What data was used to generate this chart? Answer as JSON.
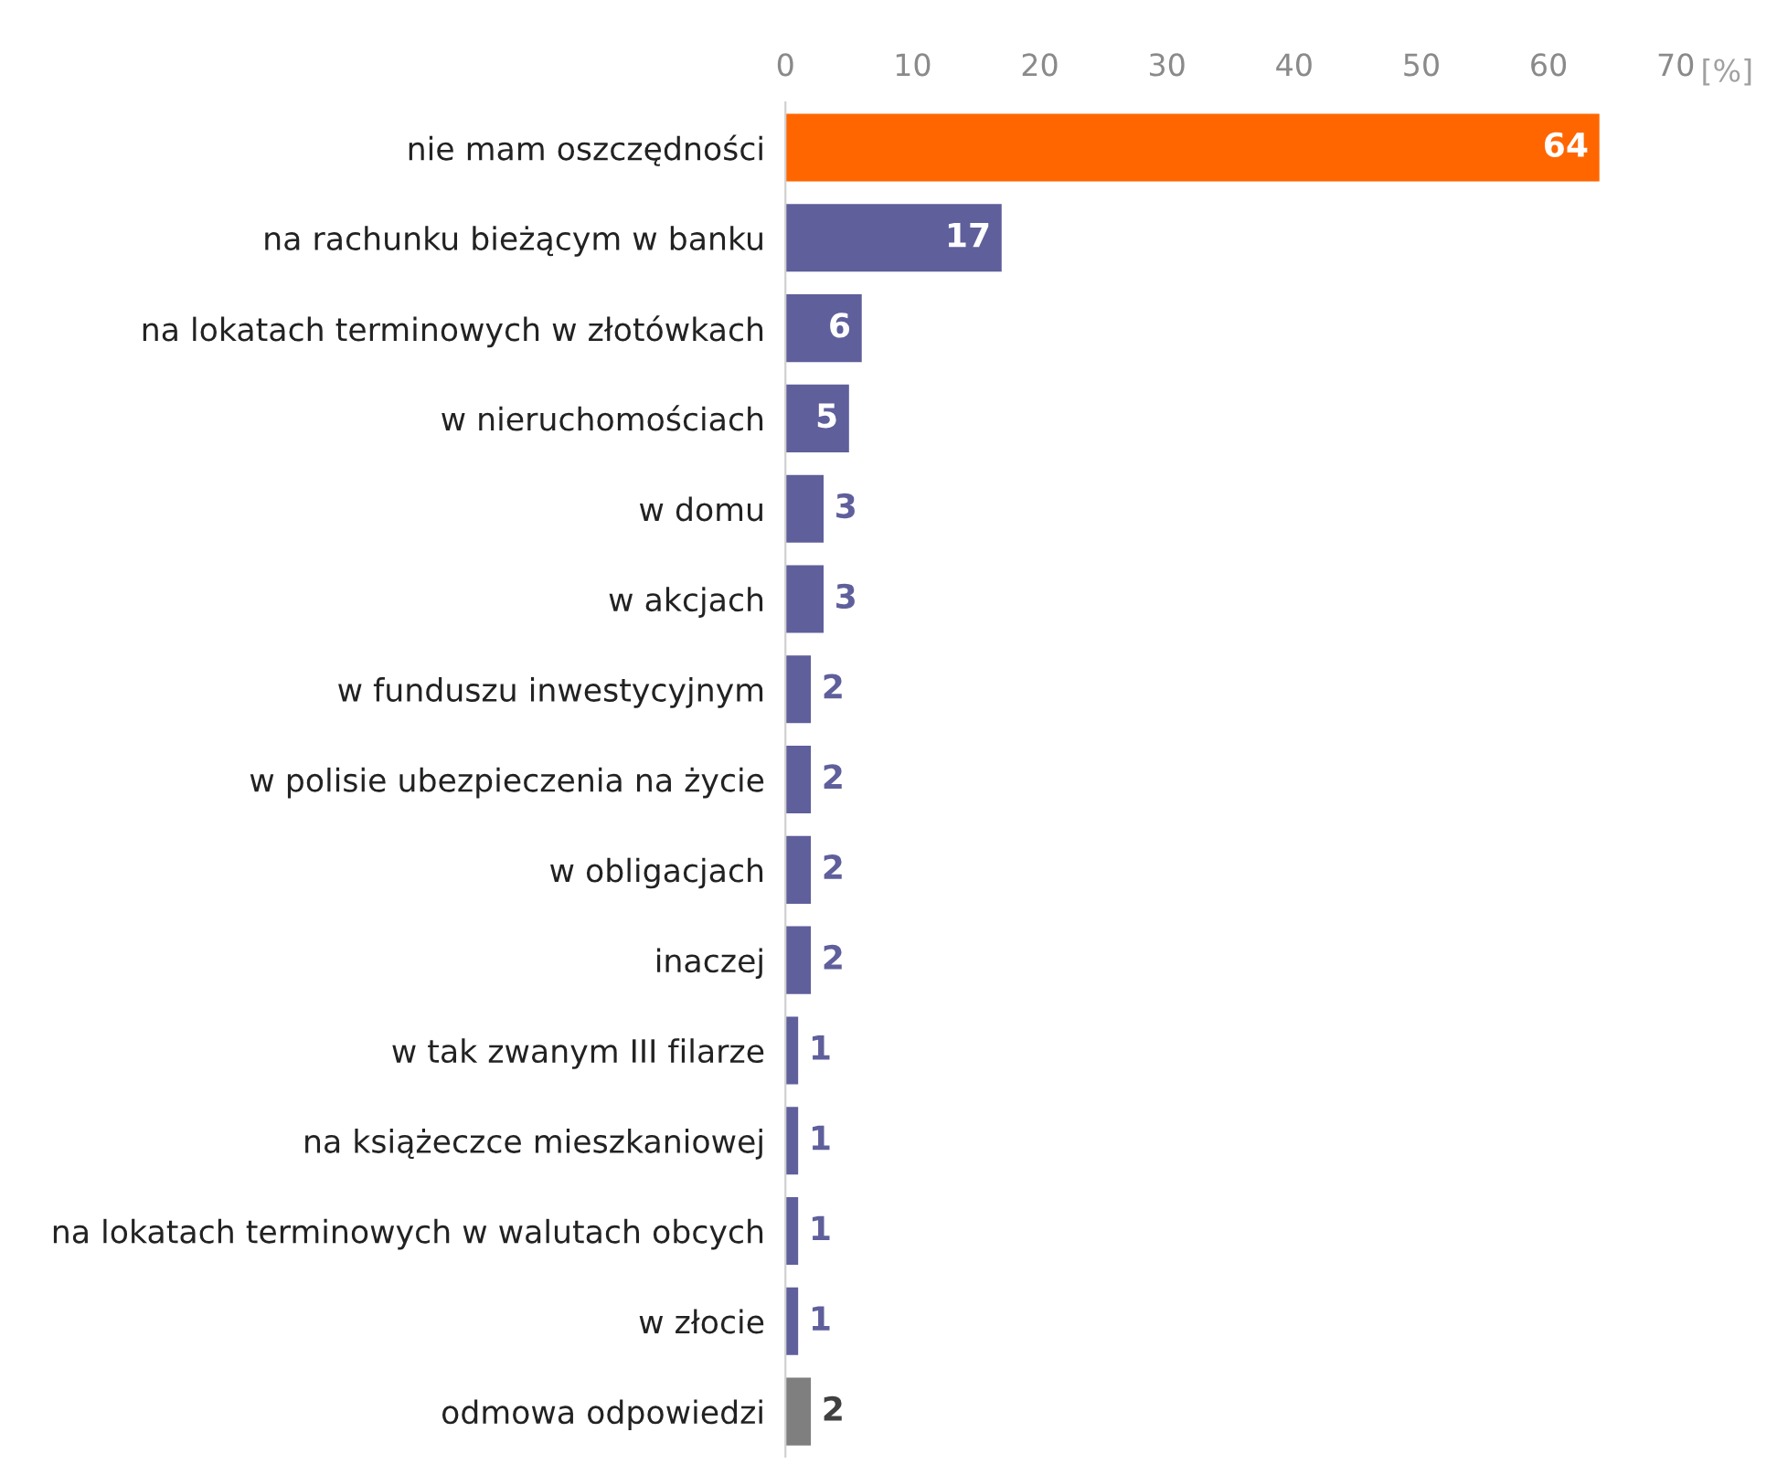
{
  "chart_data": {
    "type": "bar",
    "orientation": "horizontal",
    "xlabel": "[%]",
    "categories": [
      "nie mam oszczędności",
      "na rachunku bieżącym w banku",
      "na lokatach terminowych w złotówkach",
      "w nieruchomościach",
      "w domu",
      "w akcjach",
      "w funduszu inwestycyjnym",
      "w polisie ubezpieczenia na życie",
      "w obligacjach",
      "inaczej",
      "w tak zwanym III filarze",
      "na książeczce mieszkaniowej",
      "na lokatach terminowych w walutach obcych",
      "w złocie",
      "odmowa odpowiedzi"
    ],
    "values": [
      64,
      17,
      6,
      5,
      3,
      3,
      2,
      2,
      2,
      2,
      1,
      1,
      1,
      1,
      2
    ],
    "colors": [
      "#ff6600",
      "#5f5f9c",
      "#5f5f9c",
      "#5f5f9c",
      "#5f5f9c",
      "#5f5f9c",
      "#5f5f9c",
      "#5f5f9c",
      "#5f5f9c",
      "#5f5f9c",
      "#5f5f9c",
      "#5f5f9c",
      "#5f5f9c",
      "#5f5f9c",
      "#7f7f7f"
    ],
    "xlim": [
      0,
      70
    ],
    "xticks": [
      0,
      10,
      20,
      30,
      40,
      50,
      60,
      70
    ],
    "data_labels": true,
    "grid": false,
    "legend": false
  }
}
